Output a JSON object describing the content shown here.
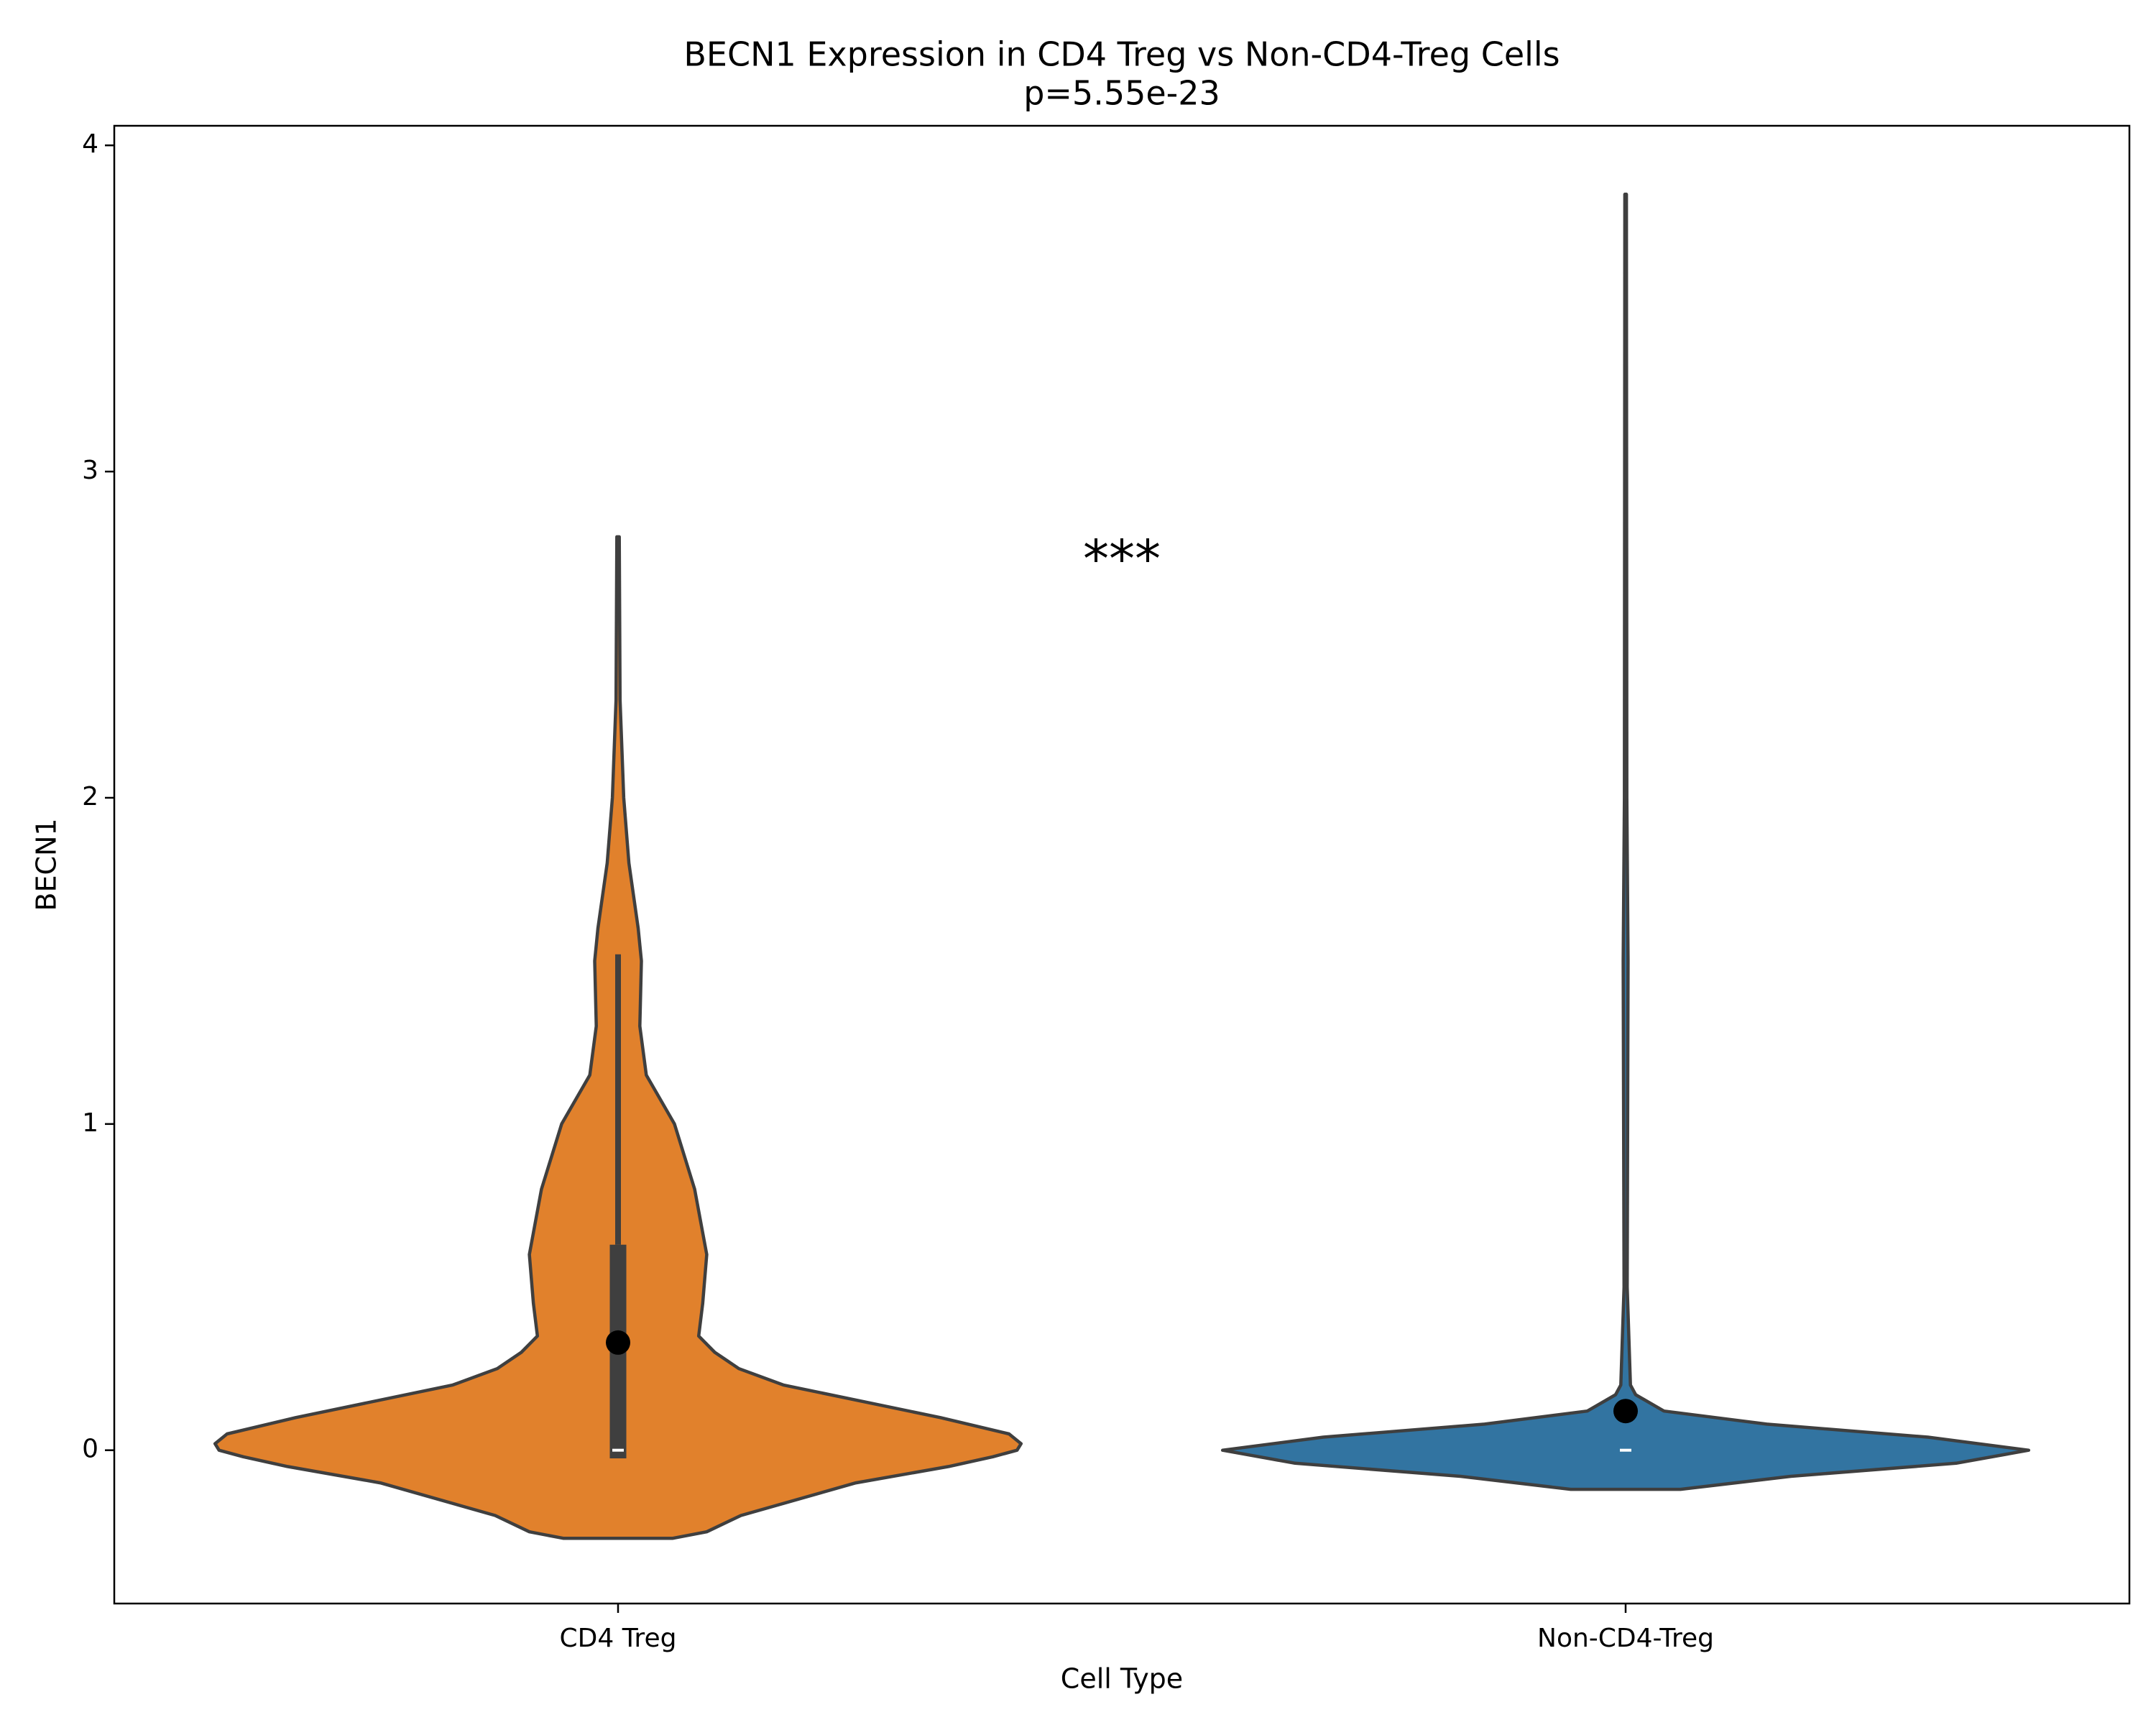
{
  "chart_data": {
    "type": "violin",
    "title": "BECN1 Expression in CD4 Treg vs Non-CD4-Treg Cells",
    "subtitle": "p=5.55e-23",
    "x_label": "Cell Type",
    "y_label": "BECN1",
    "annotation": "***",
    "categories": [
      "CD4 Treg",
      "Non-CD4-Treg"
    ],
    "ylim": [
      -0.47,
      4.06
    ],
    "yticks": [
      0,
      1,
      2,
      3,
      4
    ],
    "grid": false,
    "series": [
      {
        "name": "CD4 Treg",
        "color": "#e1812c",
        "violin": {
          "y": [
            -0.27,
            -0.25,
            -0.2,
            -0.1,
            -0.05,
            -0.02,
            0.0,
            0.02,
            0.05,
            0.1,
            0.2,
            0.25,
            0.3,
            0.35,
            0.45,
            0.6,
            0.8,
            1.0,
            1.15,
            1.3,
            1.5,
            1.6,
            1.8,
            2.0,
            2.3,
            2.8
          ],
          "width": [
            0.136,
            0.22,
            0.305,
            0.59,
            0.82,
            0.93,
            0.99,
            1.0,
            0.97,
            0.8,
            0.41,
            0.3,
            0.24,
            0.2,
            0.21,
            0.22,
            0.19,
            0.14,
            0.07,
            0.054,
            0.058,
            0.05,
            0.027,
            0.014,
            0.005,
            0.003
          ]
        },
        "q1": -0.025,
        "q3": 0.63,
        "whisker_high": 1.52,
        "median": 0,
        "mean": 0.33
      },
      {
        "name": "Non-CD4-Treg",
        "color": "#3274a1",
        "violin": {
          "y": [
            -0.12,
            -0.08,
            -0.04,
            0.0,
            0.04,
            0.08,
            0.12,
            0.17,
            0.2,
            0.5,
            1.5,
            2.0,
            3.85
          ],
          "width": [
            0.136,
            0.41,
            0.82,
            1.0,
            0.75,
            0.35,
            0.095,
            0.025,
            0.012,
            0.004,
            0.006,
            0.003,
            0.002
          ]
        },
        "median": 0,
        "mean": 0.12
      }
    ]
  }
}
